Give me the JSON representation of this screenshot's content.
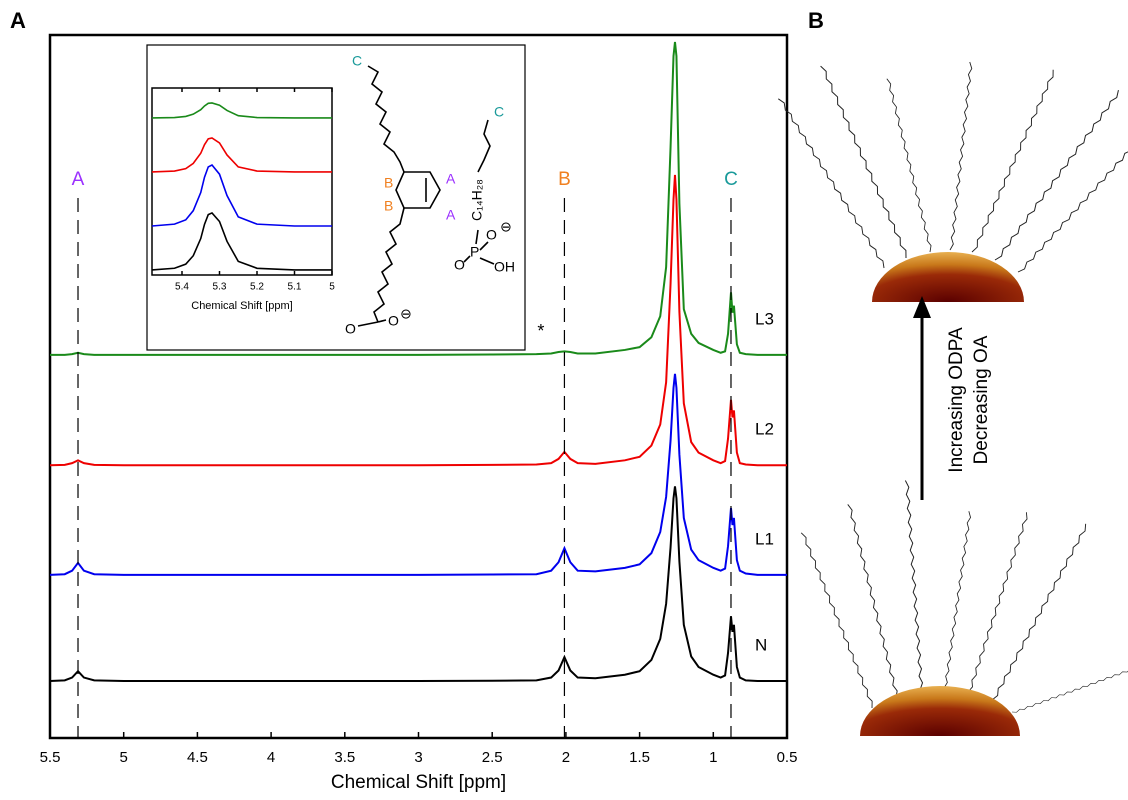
{
  "chart_data": [
    {
      "type": "line",
      "xlabel": "Chemical Shift [ppm]",
      "xlim": [
        5.5,
        0.5
      ],
      "xticks": [
        5.5,
        5,
        4.5,
        4,
        3.5,
        3,
        2.5,
        2,
        1.5,
        1,
        0.5
      ],
      "ylim": [
        0,
        100
      ],
      "x": [
        5.5,
        5.4,
        5.35,
        5.31,
        5.27,
        5.2,
        5.0,
        4.0,
        3.0,
        2.5,
        2.2,
        2.1,
        2.05,
        2.01,
        1.97,
        1.92,
        1.8,
        1.6,
        1.5,
        1.42,
        1.36,
        1.32,
        1.29,
        1.27,
        1.26,
        1.25,
        1.23,
        1.2,
        1.15,
        1.1,
        1.0,
        0.95,
        0.92,
        0.9,
        0.88,
        0.87,
        0.86,
        0.84,
        0.82,
        0.78,
        0.7,
        0.5
      ],
      "series": [
        {
          "name": "N",
          "color": "#000000",
          "values": [
            8.1,
            8.2,
            8.6,
            9.5,
            8.6,
            8.2,
            8.1,
            8.1,
            8.1,
            8.15,
            8.2,
            8.6,
            9.6,
            11.5,
            9.6,
            8.6,
            8.5,
            9.0,
            9.5,
            11.1,
            14.1,
            19.1,
            27.1,
            34.1,
            35.8,
            34.1,
            25.1,
            16.1,
            11.6,
            10.1,
            9.0,
            8.6,
            8.9,
            12.1,
            17.3,
            15.1,
            16.1,
            10.1,
            8.6,
            8.2,
            8.1,
            8.1
          ]
        },
        {
          "name": "L1",
          "color": "#0000ee",
          "values": [
            23.2,
            23.3,
            23.8,
            24.9,
            23.8,
            23.3,
            23.2,
            23.2,
            23.2,
            23.25,
            23.3,
            23.8,
            25.0,
            27.0,
            25.0,
            23.8,
            23.7,
            24.2,
            24.7,
            26.3,
            29.3,
            34.3,
            42.3,
            49.8,
            51.8,
            49.8,
            40.3,
            31.3,
            26.8,
            25.3,
            24.2,
            23.8,
            24.1,
            27.3,
            32.7,
            30.3,
            31.3,
            25.3,
            23.8,
            23.4,
            23.2,
            23.2
          ]
        },
        {
          "name": "L2",
          "color": "#ee0000",
          "values": [
            38.8,
            38.85,
            39.1,
            39.5,
            39.1,
            38.85,
            38.8,
            38.8,
            38.8,
            38.85,
            38.9,
            39.1,
            39.7,
            40.7,
            39.7,
            39.1,
            39.0,
            39.5,
            40.0,
            41.6,
            44.6,
            50.6,
            64.6,
            76.6,
            80.1,
            76.6,
            60.6,
            47.6,
            42.1,
            40.6,
            39.5,
            39.1,
            39.4,
            42.6,
            48.1,
            45.6,
            46.6,
            40.6,
            39.1,
            38.9,
            38.8,
            38.8
          ]
        },
        {
          "name": "L3",
          "color": "#1a8a1a",
          "values": [
            54.5,
            54.5,
            54.6,
            54.8,
            54.6,
            54.5,
            54.5,
            54.5,
            54.5,
            54.55,
            54.6,
            54.7,
            54.9,
            55.0,
            54.9,
            54.7,
            54.7,
            55.2,
            55.6,
            57.0,
            60.0,
            67.0,
            84.0,
            97.0,
            99.0,
            97.0,
            76.0,
            61.0,
            57.5,
            56.2,
            55.2,
            54.8,
            55.0,
            57.5,
            63.4,
            60.5,
            61.5,
            56.0,
            54.8,
            54.6,
            54.5,
            54.5
          ]
        }
      ],
      "markers": [
        {
          "label": "A",
          "x": 5.31,
          "color": "#9b30ff"
        },
        {
          "label": "B",
          "x": 2.01,
          "color": "#f08020"
        },
        {
          "label": "C",
          "x": 0.88,
          "color": "#1a9a9a"
        }
      ],
      "annotations": [
        {
          "text": "*",
          "x": 2.17
        }
      ]
    },
    {
      "type": "line",
      "xlabel": "Chemical Shift [ppm]",
      "xlim": [
        5.48,
        5.0
      ],
      "xticks": [
        5.4,
        5.3,
        5.2,
        5.1,
        5
      ],
      "ylim": [
        0,
        100
      ],
      "x": [
        5.48,
        5.42,
        5.39,
        5.37,
        5.35,
        5.34,
        5.33,
        5.32,
        5.3,
        5.28,
        5.25,
        5.2,
        5.1,
        5.0
      ],
      "series": [
        {
          "name": "N",
          "color": "#000000",
          "values": [
            2.7,
            3.6,
            5.8,
            10.3,
            19.5,
            27.1,
            32.3,
            33.2,
            28.6,
            18.0,
            7.3,
            3.6,
            2.7,
            2.7
          ]
        },
        {
          "name": "L1",
          "color": "#0000ee",
          "values": [
            26.2,
            27.2,
            29.5,
            34.4,
            44.1,
            52.3,
            57.8,
            58.8,
            53.9,
            42.5,
            31.1,
            27.2,
            26.2,
            26.2
          ]
        },
        {
          "name": "L2",
          "color": "#ee0000",
          "values": [
            55.1,
            55.6,
            56.9,
            59.7,
            65.1,
            69.7,
            72.8,
            73.3,
            70.6,
            64.2,
            57.8,
            55.6,
            55.1,
            55.1
          ]
        },
        {
          "name": "L3",
          "color": "#1a8a1a",
          "values": [
            84,
            84.2,
            84.8,
            86,
            88.4,
            90.4,
            91.8,
            92,
            90.8,
            88,
            85.2,
            84.2,
            84,
            84
          ]
        }
      ]
    }
  ],
  "panel_labels": [
    "A",
    "B"
  ],
  "structure": {
    "oleate": {
      "chain_end": "C",
      "ring": [
        "B",
        "B",
        "A",
        "A"
      ],
      "carboxylate": [
        "O",
        "O",
        "⊖"
      ]
    },
    "odpa": {
      "chain_end": "C",
      "chain": "C₁₄H₂₈",
      "phosphonate": [
        "P",
        "O",
        "O",
        "⊖",
        "OH"
      ]
    }
  },
  "panel_b": {
    "arrow_labels": [
      "Increasing ODPA",
      "Decreasing OA"
    ]
  }
}
